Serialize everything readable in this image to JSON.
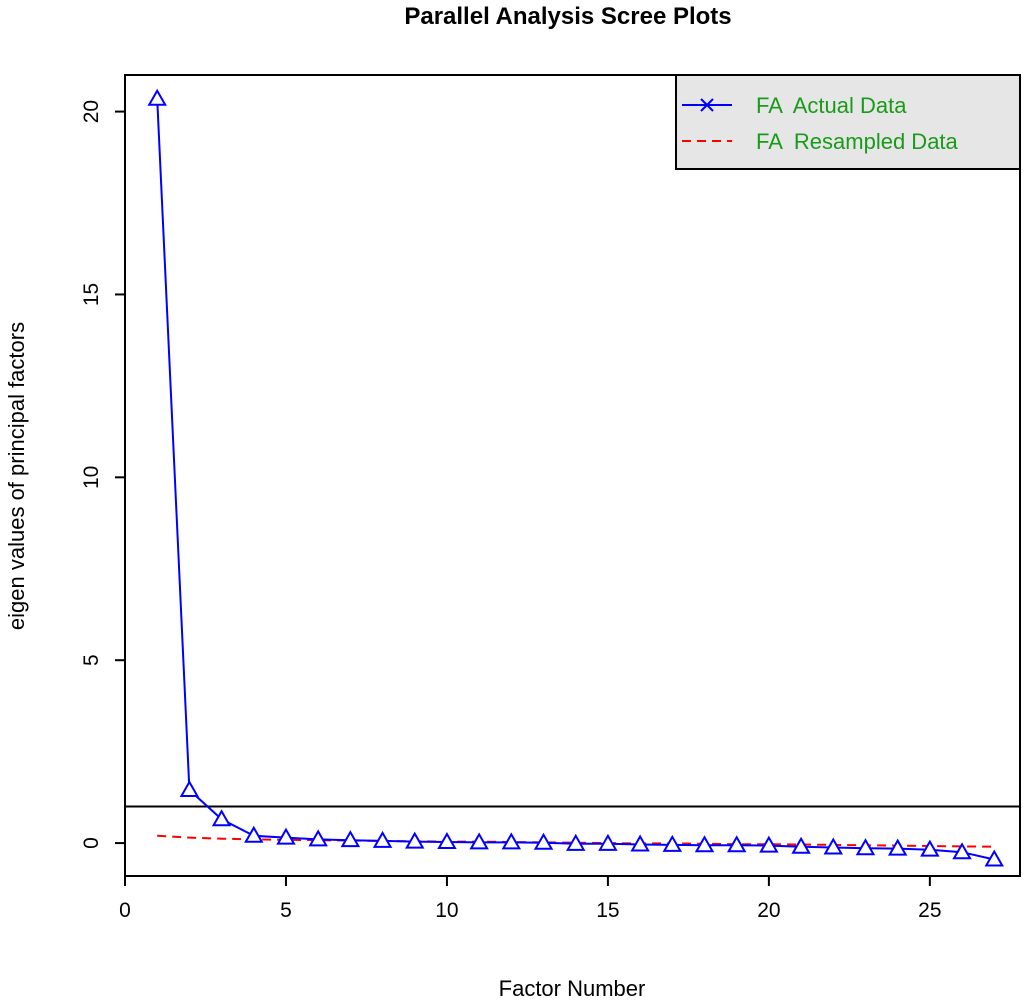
{
  "chart_data": {
    "type": "line",
    "title": "Parallel Analysis Scree Plots",
    "xlabel": "Factor Number",
    "ylabel": "eigen values of principal factors",
    "xlim": [
      0,
      27.8
    ],
    "ylim": [
      -0.9,
      21
    ],
    "x_ticks": [
      0,
      5,
      10,
      15,
      20,
      25
    ],
    "y_ticks": [
      0,
      5,
      10,
      15,
      20
    ],
    "grid": false,
    "reference_line": {
      "y": 1
    },
    "legend": {
      "position": "top-right",
      "background": "#e6e6e6",
      "text_color": "#1a9a1a",
      "entries": [
        {
          "label": "FA  Actual Data",
          "color": "#0000ff",
          "style": "solid-x"
        },
        {
          "label": "FA  Resampled Data",
          "color": "#ff0000",
          "style": "dashed"
        }
      ]
    },
    "x": [
      1,
      2,
      3,
      4,
      5,
      6,
      7,
      8,
      9,
      10,
      11,
      12,
      13,
      14,
      15,
      16,
      17,
      18,
      19,
      20,
      21,
      22,
      23,
      24,
      25,
      26,
      27
    ],
    "series": [
      {
        "name": "FA  Actual Data",
        "color": "#0000ff",
        "marker": "triangle",
        "line": "solid",
        "values": [
          20.35,
          1.45,
          0.65,
          0.2,
          0.15,
          0.1,
          0.08,
          0.06,
          0.04,
          0.03,
          0.02,
          0.02,
          0.01,
          -0.02,
          -0.02,
          -0.04,
          -0.05,
          -0.06,
          -0.06,
          -0.07,
          -0.1,
          -0.12,
          -0.14,
          -0.15,
          -0.18,
          -0.25,
          -0.45
        ]
      },
      {
        "name": "FA  Resampled Data",
        "color": "#ff0000",
        "line": "dashed",
        "values": [
          0.2,
          0.15,
          0.12,
          0.1,
          0.09,
          0.08,
          0.07,
          0.06,
          0.05,
          0.04,
          0.04,
          0.03,
          0.02,
          0.01,
          0.0,
          -0.01,
          -0.01,
          -0.02,
          -0.03,
          -0.03,
          -0.04,
          -0.05,
          -0.06,
          -0.07,
          -0.08,
          -0.09,
          -0.1
        ]
      }
    ]
  }
}
